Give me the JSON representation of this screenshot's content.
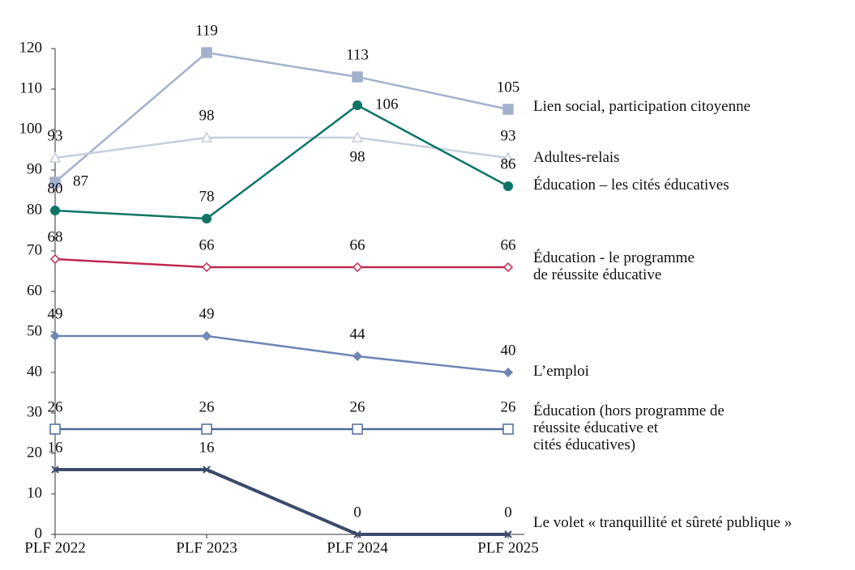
{
  "chart_data": {
    "type": "line",
    "categories": [
      "PLF 2022",
      "PLF 2023",
      "PLF 2024",
      "PLF 2025"
    ],
    "ylim": [
      0,
      120
    ],
    "yticks": [
      0,
      10,
      20,
      30,
      40,
      50,
      60,
      70,
      80,
      90,
      100,
      110,
      120
    ],
    "grid": false,
    "series": [
      {
        "name": "Lien social, participation citoyenne",
        "color": "#a3b1cc",
        "marker": "square",
        "values": [
          87,
          119,
          113,
          105
        ]
      },
      {
        "name": "Adultes-relais",
        "color": "#c5cedd",
        "marker": "triangle-open",
        "values": [
          93,
          98,
          98,
          93
        ]
      },
      {
        "name": "Éducation – les cités éducatives",
        "color": "#0e7566",
        "marker": "circle",
        "values": [
          80,
          78,
          106,
          86
        ]
      },
      {
        "name": "Éducation - le programme\nde réussite éducative",
        "color": "#c0284f",
        "marker": "diamond-open",
        "values": [
          68,
          66,
          66,
          66
        ]
      },
      {
        "name": "L’emploi",
        "color": "#6f86b4",
        "marker": "diamond",
        "values": [
          49,
          49,
          44,
          40
        ]
      },
      {
        "name": "Éducation (hors  programme de\nréussite éducative et\ncités éducatives)",
        "color": "#4d6a9b",
        "marker": "square-open",
        "values": [
          26,
          26,
          26,
          26
        ]
      },
      {
        "name": "Le volet « tranquillité et sûreté publique »",
        "color": "#3a4a6b",
        "marker": "x",
        "values": [
          16,
          16,
          0,
          0
        ]
      }
    ]
  }
}
